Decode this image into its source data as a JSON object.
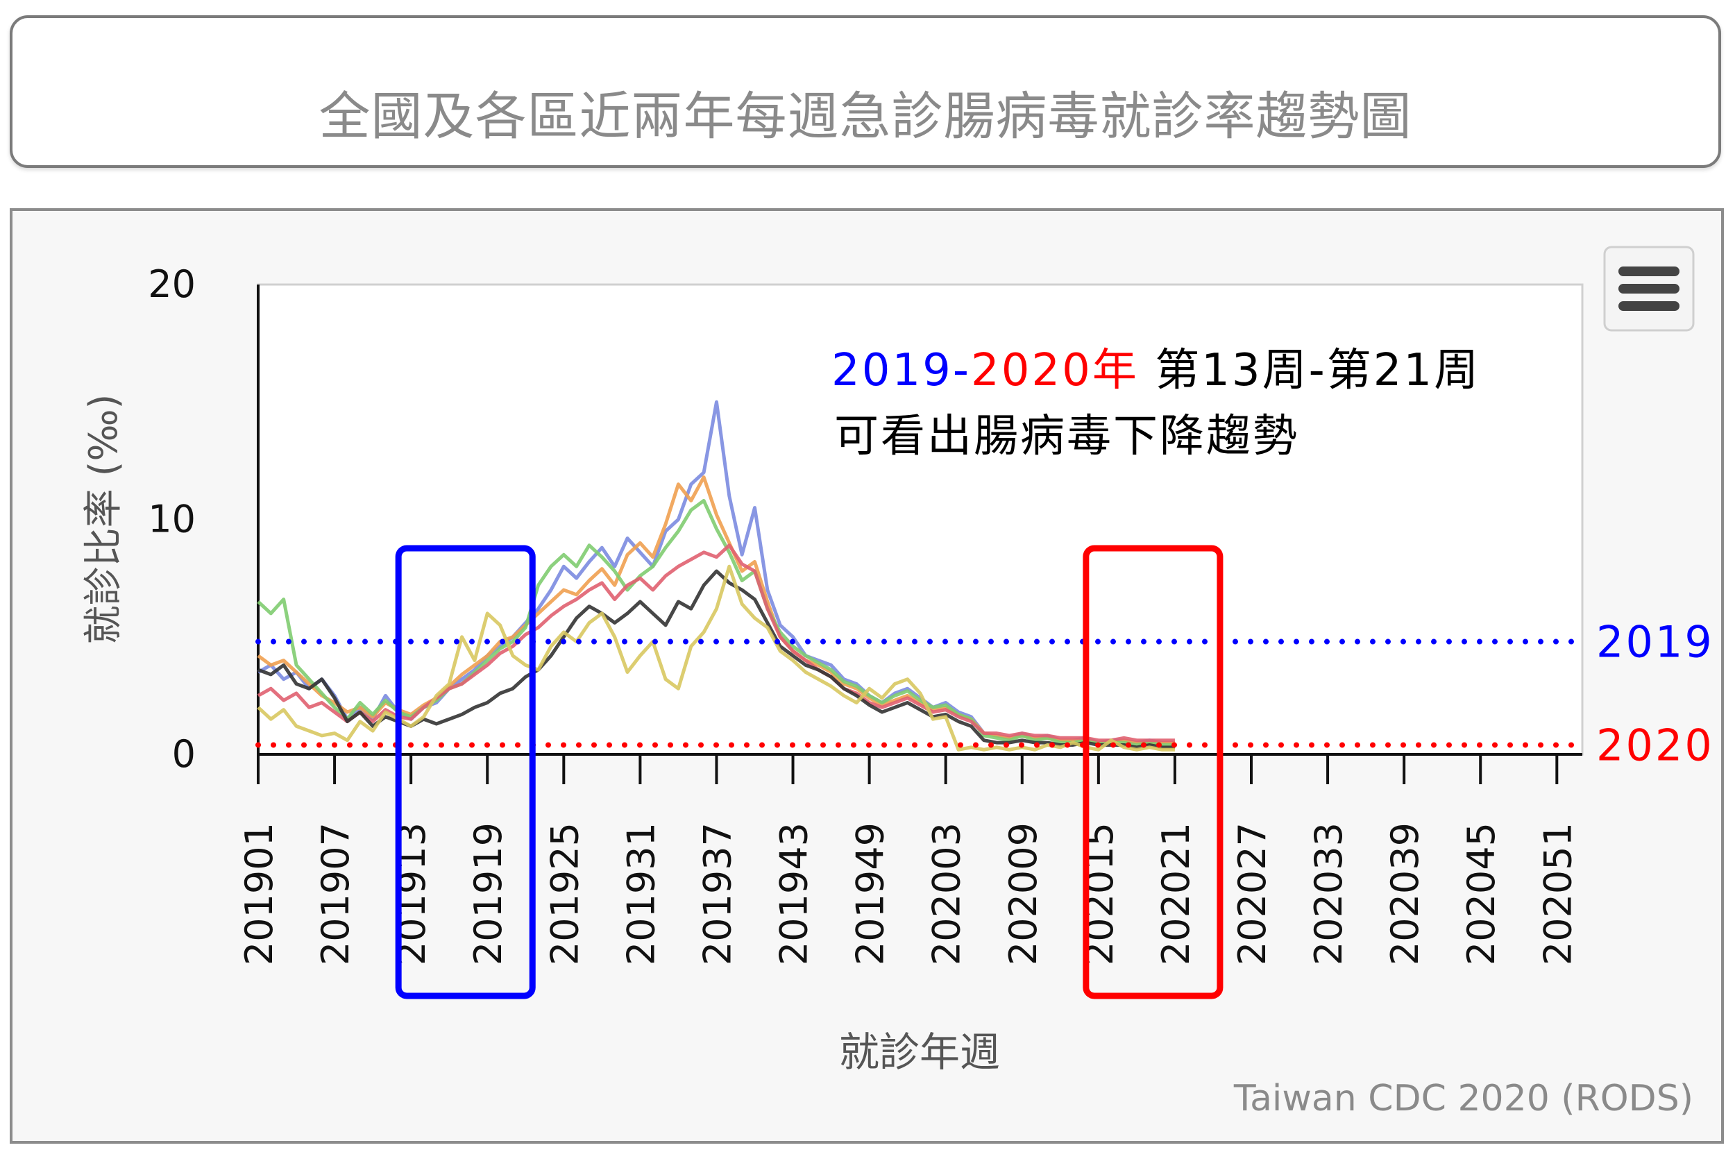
{
  "page": {
    "title": "全國及各區近兩年每週急診腸病毒就診率趨勢圖"
  },
  "chart_data": {
    "type": "line",
    "ylabel": "就診比率 (‰)",
    "xlabel": "就診年週",
    "credit": "Taiwan CDC 2020 (RODS)",
    "ylim": [
      0,
      20
    ],
    "yticks": [
      0,
      10,
      20
    ],
    "xticks": [
      "201901",
      "201907",
      "201913",
      "201919",
      "201925",
      "201931",
      "201937",
      "201943",
      "201949",
      "202003",
      "202009",
      "202015",
      "202021",
      "202027",
      "202033",
      "202039",
      "202045",
      "202051"
    ],
    "x_range_weeks": [
      0,
      104
    ],
    "annotation": {
      "year_2019": "2019",
      "dash": "-",
      "year_2020": "2020年",
      "weeks": " 第13周-第21周",
      "line2": "可看出腸病毒下降趨勢"
    },
    "reference_lines": [
      {
        "label": "2019",
        "value": 4.8,
        "color": "#0000ff"
      },
      {
        "label": "2020",
        "value": 0.4,
        "color": "#ff0000"
      }
    ],
    "highlight_boxes": [
      {
        "from": "201913",
        "to": "201919",
        "color": "#0000ff"
      },
      {
        "from": "202015",
        "to": "202021",
        "color": "#ff0000"
      }
    ],
    "series": [
      {
        "color": "#7b8be0",
        "values": [
          3.5,
          3.8,
          3.2,
          3.5,
          2.8,
          3.2,
          2.5,
          1.5,
          2.0,
          1.5,
          2.5,
          1.8,
          1.5,
          2.0,
          2.2,
          2.8,
          3.2,
          3.6,
          4.2,
          4.6,
          5.0,
          5.6,
          6.2,
          7.0,
          8.0,
          7.5,
          8.2,
          8.8,
          8.0,
          9.2,
          8.6,
          8.0,
          9.5,
          10.0,
          11.5,
          12.0,
          15.0,
          11.0,
          8.5,
          10.5,
          7.0,
          5.5,
          5.0,
          4.2,
          4.0,
          3.8,
          3.2,
          3.0,
          2.5,
          2.2,
          2.6,
          2.8,
          2.4,
          2.0,
          2.2,
          1.8,
          1.6,
          0.9,
          0.8,
          0.7,
          0.9,
          0.7,
          0.8,
          0.6,
          0.6,
          0.7,
          0.5,
          0.6,
          0.6,
          0.5,
          0.6,
          0.5,
          0.5
        ]
      },
      {
        "color": "#f0a050",
        "values": [
          4.2,
          3.8,
          4.0,
          3.5,
          3.0,
          2.5,
          2.2,
          1.8,
          2.0,
          1.6,
          2.2,
          1.9,
          1.7,
          2.1,
          2.4,
          2.9,
          3.4,
          3.8,
          4.2,
          4.8,
          5.0,
          5.5,
          6.0,
          6.5,
          7.0,
          6.8,
          7.4,
          7.9,
          7.2,
          8.5,
          9.0,
          8.4,
          9.8,
          11.5,
          10.8,
          11.8,
          10.2,
          9.0,
          7.8,
          8.2,
          6.5,
          5.0,
          4.4,
          4.0,
          3.8,
          3.5,
          3.0,
          2.8,
          2.4,
          2.1,
          2.3,
          2.5,
          2.2,
          1.9,
          2.0,
          1.7,
          1.5,
          0.9,
          0.8,
          0.7,
          0.8,
          0.7,
          0.7,
          0.6,
          0.6,
          0.6,
          0.5,
          0.5,
          0.6,
          0.5,
          0.5,
          0.5,
          0.5
        ]
      },
      {
        "color": "#80cc70",
        "values": [
          6.5,
          6.0,
          6.6,
          3.8,
          3.2,
          2.6,
          2.0,
          1.5,
          2.2,
          1.7,
          2.3,
          1.8,
          1.6,
          2.0,
          2.3,
          2.8,
          3.0,
          3.5,
          4.0,
          4.5,
          4.8,
          5.4,
          7.2,
          8.0,
          8.5,
          8.0,
          8.9,
          8.4,
          7.8,
          7.0,
          7.6,
          8.0,
          8.8,
          9.5,
          10.4,
          10.8,
          9.6,
          8.6,
          7.4,
          7.8,
          6.2,
          5.2,
          4.6,
          4.2,
          3.9,
          3.6,
          3.1,
          2.9,
          2.5,
          2.2,
          2.5,
          2.7,
          2.3,
          2.0,
          2.1,
          1.7,
          1.5,
          0.8,
          0.7,
          0.6,
          0.8,
          0.6,
          0.7,
          0.5,
          0.5,
          0.6,
          0.5,
          0.5,
          0.5,
          0.4,
          0.5,
          0.4,
          0.4
        ]
      },
      {
        "color": "#e06070",
        "values": [
          2.5,
          2.8,
          2.3,
          2.6,
          2.0,
          2.2,
          1.8,
          1.4,
          1.8,
          1.4,
          1.9,
          1.6,
          1.5,
          2.0,
          2.4,
          2.8,
          3.0,
          3.4,
          3.8,
          4.3,
          4.6,
          5.1,
          5.4,
          5.9,
          6.3,
          6.6,
          7.0,
          7.3,
          6.6,
          7.2,
          7.5,
          7.0,
          7.6,
          8.0,
          8.3,
          8.6,
          8.4,
          8.9,
          8.1,
          7.8,
          6.2,
          5.0,
          4.4,
          4.0,
          3.6,
          3.3,
          2.8,
          2.6,
          2.2,
          2.0,
          2.2,
          2.4,
          2.1,
          1.8,
          1.9,
          1.6,
          1.4,
          0.9,
          0.9,
          0.8,
          0.9,
          0.8,
          0.8,
          0.7,
          0.7,
          0.7,
          0.6,
          0.6,
          0.7,
          0.6,
          0.6,
          0.6,
          0.6
        ]
      },
      {
        "color": "#333333",
        "values": [
          3.6,
          3.4,
          3.8,
          3.0,
          2.8,
          3.2,
          2.4,
          1.4,
          1.8,
          1.2,
          1.6,
          1.4,
          1.2,
          1.5,
          1.3,
          1.5,
          1.7,
          2.0,
          2.2,
          2.6,
          2.8,
          3.3,
          3.6,
          4.2,
          5.0,
          5.8,
          6.3,
          6.0,
          5.6,
          6.0,
          6.5,
          6.0,
          5.5,
          6.5,
          6.2,
          7.2,
          7.8,
          7.3,
          7.0,
          6.6,
          5.6,
          4.6,
          4.2,
          3.8,
          3.6,
          3.3,
          2.8,
          2.5,
          2.1,
          1.8,
          2.0,
          2.2,
          1.9,
          1.6,
          1.7,
          1.4,
          1.2,
          0.6,
          0.5,
          0.5,
          0.6,
          0.5,
          0.5,
          0.4,
          0.4,
          0.5,
          0.4,
          0.4,
          0.4,
          0.3,
          0.4,
          0.3,
          0.3
        ]
      },
      {
        "color": "#d8c860",
        "values": [
          2.0,
          1.5,
          1.9,
          1.2,
          1.0,
          0.8,
          0.9,
          0.6,
          1.4,
          1.0,
          1.8,
          1.5,
          1.2,
          1.6,
          2.5,
          3.0,
          5.0,
          4.0,
          6.0,
          5.5,
          4.2,
          3.8,
          3.6,
          4.6,
          5.2,
          4.8,
          5.6,
          6.0,
          5.0,
          3.5,
          4.2,
          4.8,
          3.2,
          2.8,
          4.6,
          5.2,
          6.2,
          8.0,
          6.4,
          5.8,
          5.4,
          4.4,
          4.0,
          3.5,
          3.2,
          2.9,
          2.5,
          2.2,
          2.8,
          2.4,
          3.0,
          3.2,
          2.6,
          1.5,
          1.6,
          0.2,
          0.3,
          0.2,
          0.3,
          0.2,
          0.3,
          0.2,
          0.4,
          0.3,
          0.5,
          0.3,
          0.2,
          0.6,
          0.3,
          0.2,
          0.3,
          0.2,
          0.2
        ]
      }
    ]
  }
}
